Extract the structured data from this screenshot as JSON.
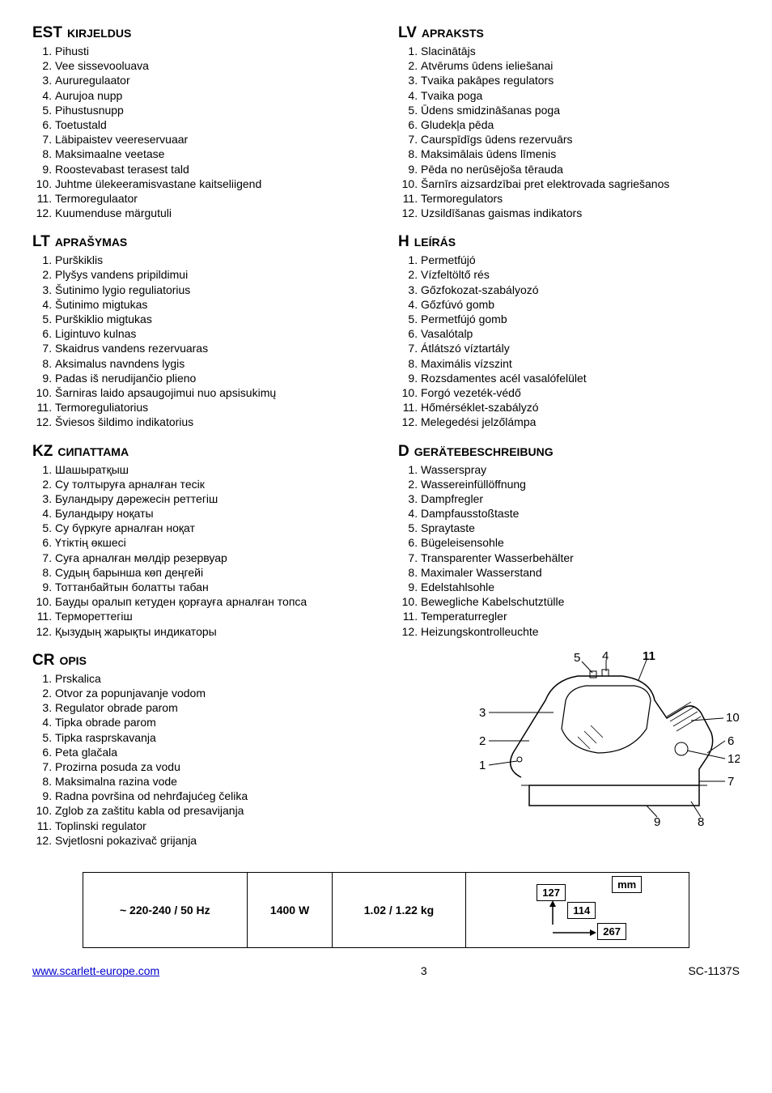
{
  "sections": {
    "est": {
      "code": "EST",
      "label": "KIRJELDUS",
      "items": [
        "Pihusti",
        "Vee sissevooluava",
        "Aururegulaator",
        "Aurujoa nupp",
        "Pihustusnupp",
        "Toetustald",
        "Läbipaistev veereservuaar",
        "Maksimaalne veetase",
        "Roostevabast terasest tald",
        "Juhtme ülekeeramisvastane kaitseliigend",
        "Termoregulaator",
        "Kuumenduse märgutuli"
      ]
    },
    "lt": {
      "code": "LT",
      "label": "APRAŠYMAS",
      "items": [
        "Purškiklis",
        "Plyšys vandens pripildimui",
        "Šutinimo lygio reguliatorius",
        "Šutinimo migtukas",
        "Purškiklio migtukas",
        "Ligintuvo kulnas",
        "Skaidrus vandens rezervuaras",
        "Aksimalus navndens lygis",
        "Padas iš nerudijančio plieno",
        "Šarniras laido apsaugojimui nuo apsisukimų",
        "Termoreguliatorius",
        "Šviesos  šildimo indikatorius"
      ]
    },
    "kz": {
      "code": "KZ",
      "label": "СИПАТТАМА",
      "items": [
        "Шашыратқыш",
        "Су толтыруға арналған тесік",
        "Буландыру дәрежесін реттегіш",
        "Буландыру ноқаты",
        "Су бүркуге арналған ноқат",
        "Үтіктің өкшесі",
        "Суға арналған мөлдір резервуар",
        "Судың барынша көп деңгейі",
        "Тоттанбайтын болатты табан",
        "Бауды оралып кетуден қорғауға арналған топса",
        "Термореттегіш",
        "Қызудың жарықты индикаторы"
      ]
    },
    "cr": {
      "code": "CR",
      "label": "OPIS",
      "items": [
        "Prskalica",
        "Otvor za popunjavanje vodom",
        "Regulator obrade parom",
        "Tipka obrade parom",
        "Tipka rasprskavanja",
        "Peta glačala",
        "Prozirna posuda za vodu",
        "Maksimalna razina vode",
        "Radna površina od nehrđajućeg čelika",
        "Zglob za zaštitu kabla od presavijanja",
        "Toplinski regulator",
        "Svjetlosni pokazivač grijanja"
      ]
    },
    "lv": {
      "code": "LV",
      "label": "APRAKSTS",
      "items": [
        "Slacinātājs",
        "Atvērums ūdens ieliešanai",
        "Tvaika pakāpes regulators",
        "Tvaika poga",
        "Ūdens smidzināšanas poga",
        "Gludekļa pēda",
        "Caurspīdīgs ūdens rezervuārs",
        "Maksimālais ūdens līmenis",
        "Pēda no nerūsējoša tērauda",
        "Šarnīrs aizsardzībai pret elektrovada sagriešanos",
        "Termoregulators",
        "Uzsildīšanas gaismas indikators"
      ]
    },
    "h": {
      "code": "H",
      "label": "LEÍRÁS",
      "items": [
        "Permetfújó",
        "Vízfeltöltő rés",
        "Gőzfokozat-szabályozó",
        "Gőzfúvó gomb",
        "Permetfújó gomb",
        "Vasalótalp",
        "Átlátszó víztartály",
        "Maximális vízszint",
        "Rozsdamentes acél vasalófelület",
        "Forgó vezeték-védő",
        "Hőmérséklet-szabályzó",
        "Melegedési jelzőlámpa"
      ]
    },
    "d": {
      "code": "D",
      "label": "GERÄTEBESCHREIBUNG",
      "items": [
        "Wasserspray",
        "Wassereinfüllöffnung",
        "Dampfregler",
        "Dampfausstoßtaste",
        "Spraytaste",
        "Bügeleisensohle",
        "Transparenter Wasserbehälter",
        "Maximaler Wasserstand",
        "Edelstahlsohle",
        "Bewegliche Kabelschutztülle",
        "Temperaturregler",
        "Heizungskontrolleuchte"
      ]
    }
  },
  "diagram": {
    "labels": [
      "1",
      "2",
      "3",
      "4",
      "5",
      "6",
      "7",
      "8",
      "9",
      "10",
      "11",
      "12"
    ],
    "colors": {
      "outline": "#000000"
    }
  },
  "specs": {
    "voltage": "~ 220-240 / 50 Hz",
    "power": "1400 W",
    "weight": "1.02 / 1.22 kg",
    "dim_unit": "mm",
    "dim_h": "127",
    "dim_w": "114",
    "dim_l": "267"
  },
  "footer": {
    "url": "www.scarlett-europe.com",
    "page": "3",
    "model": "SC-1137S"
  }
}
